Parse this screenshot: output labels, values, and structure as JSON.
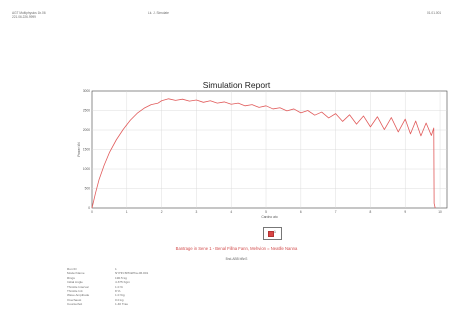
{
  "header": {
    "left_lines": [
      "AGT Multiphysics 1b.06",
      "221.06.226.9999"
    ],
    "center": "Lk. J. Simulate",
    "right": "01.01.001"
  },
  "report": {
    "title": "Simulation Report",
    "caption": "Bantrage in Sene 1 - Benal Fillna Fann, Mehvion = Neatlle Nanna",
    "subcaption": "Bnd-ABB bBnS",
    "legend_label": "1"
  },
  "params": [
    {
      "label": "Run ID",
      "value": "1"
    },
    {
      "label": "Model Name",
      "value": "NYHN.5Ph&Pha-06.001"
    },
    {
      "label": "Rings",
      "value": "190.5 kg"
    },
    {
      "label": "Initial Angle",
      "value": "4.375 Kgm"
    },
    {
      "label": "Throttle Interval",
      "value": "1.0 %"
    },
    {
      "label": "Throttle Init",
      "value": "8 %"
    },
    {
      "label": "Wave Amplitude",
      "value": "1.0 %g"
    },
    {
      "label": "Overhaust",
      "value": "0.0 kg"
    },
    {
      "label": "Counterfeit",
      "value": "1.40 Trau"
    }
  ],
  "chart_data": {
    "type": "line",
    "title": "Simulation Report",
    "xlabel": "Cardno ato",
    "ylabel": "Power kN",
    "x_ticks": [
      0,
      1,
      2,
      3,
      4,
      5,
      6,
      7,
      8,
      9,
      10
    ],
    "y_ticks": [
      0,
      500,
      1000,
      1500,
      2000,
      2500,
      3000
    ],
    "xlim": [
      0,
      10.2
    ],
    "ylim": [
      0,
      3000
    ],
    "grid": true,
    "colors": {
      "line": "#e15b5b",
      "grid": "#d5d5d5",
      "axis": "#444444"
    },
    "series": [
      {
        "name": "1",
        "x": [
          0,
          0.1,
          0.2,
          0.35,
          0.5,
          0.7,
          0.9,
          1.1,
          1.3,
          1.5,
          1.7,
          1.9,
          2.0,
          2.2,
          2.4,
          2.6,
          2.8,
          3.0,
          3.2,
          3.4,
          3.6,
          3.8,
          4.0,
          4.2,
          4.4,
          4.6,
          4.8,
          5.0,
          5.2,
          5.4,
          5.6,
          5.8,
          6.0,
          6.2,
          6.4,
          6.6,
          6.8,
          7.0,
          7.2,
          7.4,
          7.6,
          7.8,
          8.0,
          8.2,
          8.4,
          8.6,
          8.8,
          9.0,
          9.15,
          9.3,
          9.45,
          9.6,
          9.75,
          9.82,
          9.83,
          9.86
        ],
        "y": [
          0,
          380,
          720,
          1100,
          1420,
          1750,
          2020,
          2250,
          2430,
          2560,
          2650,
          2690,
          2750,
          2800,
          2760,
          2790,
          2740,
          2770,
          2710,
          2750,
          2690,
          2720,
          2660,
          2690,
          2620,
          2650,
          2580,
          2620,
          2540,
          2570,
          2490,
          2540,
          2440,
          2500,
          2380,
          2460,
          2310,
          2420,
          2220,
          2390,
          2150,
          2360,
          2080,
          2340,
          2010,
          2320,
          1950,
          2280,
          1900,
          2230,
          1850,
          2180,
          1860,
          2050,
          120,
          0
        ]
      }
    ]
  }
}
